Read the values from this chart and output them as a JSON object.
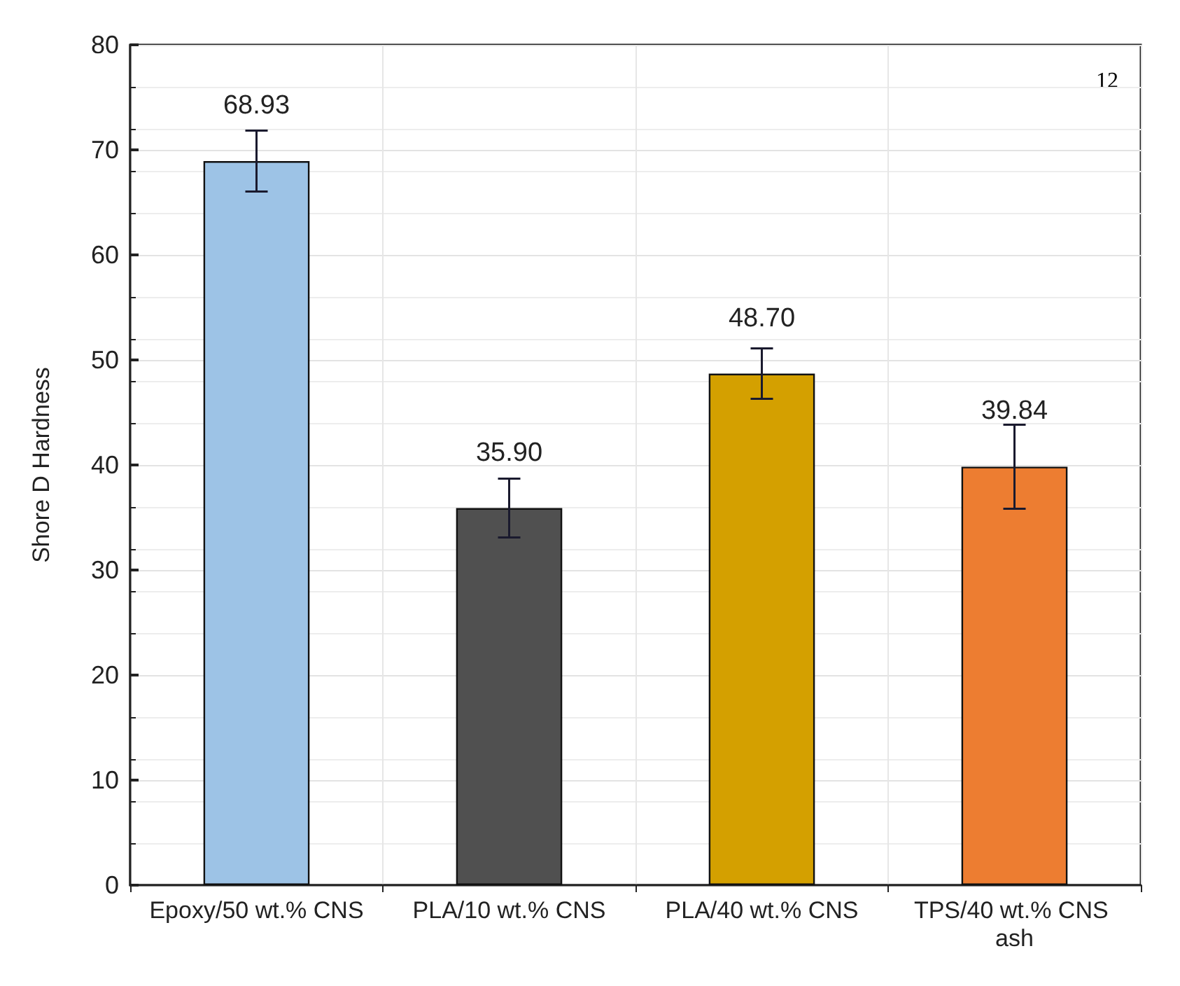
{
  "chart_data": {
    "type": "bar",
    "ylabel": "Shore D Hardness",
    "categories": [
      "Epoxy/50 wt.% CNS",
      "PLA/10 wt.% CNS",
      "PLA/40 wt.% CNS",
      "TPS/40 wt.% CNS ash"
    ],
    "values": [
      68.93,
      35.9,
      48.7,
      39.84
    ],
    "colors": [
      "#9dc3e6",
      "#505050",
      "#d4a000",
      "#ed7d31"
    ],
    "errors": [
      2.9,
      2.8,
      2.4,
      4.0
    ],
    "value_labels": [
      "68.93",
      "35.90",
      "48.70",
      "39.84"
    ],
    "ylim": [
      0,
      80
    ],
    "yticks": [
      0,
      10,
      20,
      30,
      40,
      50,
      60,
      70,
      80
    ],
    "grid": true,
    "annotations": [
      "12"
    ]
  }
}
